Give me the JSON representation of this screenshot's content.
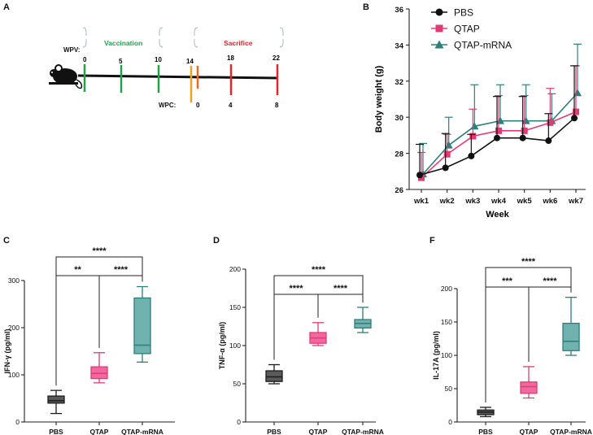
{
  "panels": {
    "A": "A",
    "B": "B",
    "C": "C",
    "D": "D",
    "F": "F"
  },
  "timeline": {
    "wpv_label": "WPV:",
    "wpc_label": "WPC:",
    "vaccination_label": "Vaccination",
    "sacrifice_label": "Sacrifice",
    "wpv_ticks": [
      "0",
      "5",
      "10",
      "14",
      "18",
      "22"
    ],
    "wpc_ticks": [
      "0",
      "4",
      "8"
    ],
    "colors": {
      "vaccination": "#23a04a",
      "sacrifice": "#e0262f",
      "wpc0": "#f0a020",
      "orange": "#ea6a1f",
      "bracket": "#aab9cc"
    }
  },
  "chart_data": [
    {
      "id": "B",
      "type": "line",
      "title": "",
      "xlabel": "Week",
      "ylabel": "Body weight (g)",
      "categories": [
        "wk1",
        "wk2",
        "wk3",
        "wk4",
        "wk5",
        "wk6",
        "wk7"
      ],
      "ylim": [
        26,
        36
      ],
      "yticks": [
        "26",
        "28",
        "30",
        "32",
        "34",
        "36"
      ],
      "legend_position": "top-left",
      "series": [
        {
          "name": "PBS",
          "marker": "circle",
          "color": "#111111",
          "values": [
            26.8,
            27.2,
            27.85,
            28.85,
            28.85,
            28.7,
            29.95
          ],
          "err": [
            1.7,
            1.9,
            1.2,
            2.3,
            2.3,
            1.5,
            2.9
          ]
        },
        {
          "name": "QTAP",
          "marker": "square",
          "color": "#e23a73",
          "values": [
            26.65,
            27.95,
            28.95,
            29.25,
            29.25,
            29.7,
            30.3
          ],
          "err": [
            1.4,
            1.1,
            1.5,
            1.95,
            1.95,
            1.9,
            2.55
          ]
        },
        {
          "name": "QTAP-mRNA",
          "marker": "triangle",
          "color": "#2b7f7c",
          "values": [
            26.85,
            28.45,
            29.5,
            29.8,
            29.8,
            29.8,
            31.35
          ],
          "err": [
            1.7,
            1.55,
            2.3,
            2.0,
            2.0,
            1.5,
            2.7
          ]
        }
      ]
    },
    {
      "id": "C",
      "type": "box",
      "ylabel": "IFN-γ (pg/ml)",
      "ylim": [
        0,
        300
      ],
      "yticks": [
        "0",
        "100",
        "200",
        "300"
      ],
      "categories": [
        "PBS",
        "QTAP",
        "QTAP-mRNA"
      ],
      "boxes": [
        {
          "min": 18,
          "q1": 40,
          "median": 45,
          "q3": 55,
          "max": 67
        },
        {
          "min": 83,
          "q1": 92,
          "median": 103,
          "q3": 117,
          "max": 147
        },
        {
          "min": 127,
          "q1": 145,
          "median": 163,
          "q3": 263,
          "max": 287
        }
      ],
      "significance": [
        {
          "from": 0,
          "to": 1,
          "label": "**"
        },
        {
          "from": 1,
          "to": 2,
          "label": "****"
        },
        {
          "from": 0,
          "to": 2,
          "label": "****"
        }
      ]
    },
    {
      "id": "D",
      "type": "box",
      "ylabel": "TNF-α (pg/ml)",
      "ylim": [
        0,
        200
      ],
      "yticks": [
        "0",
        "50",
        "100",
        "150",
        "200"
      ],
      "categories": [
        "PBS",
        "QTAP",
        "QTAP-mRNA"
      ],
      "boxes": [
        {
          "min": 50,
          "q1": 53,
          "median": 59,
          "q3": 67,
          "max": 75
        },
        {
          "min": 100,
          "q1": 103,
          "median": 110,
          "q3": 117,
          "max": 130
        },
        {
          "min": 117,
          "q1": 123,
          "median": 129,
          "q3": 134,
          "max": 150
        }
      ],
      "significance": [
        {
          "from": 0,
          "to": 1,
          "label": "****"
        },
        {
          "from": 1,
          "to": 2,
          "label": "****"
        },
        {
          "from": 0,
          "to": 2,
          "label": "****"
        }
      ]
    },
    {
      "id": "F",
      "type": "box",
      "ylabel": "IL-17A (pg/ml)",
      "ylim": [
        0,
        200
      ],
      "yticks": [
        "0",
        "50",
        "100",
        "150",
        "200"
      ],
      "categories": [
        "PBS",
        "QTAP",
        "QTAP-mRNA"
      ],
      "boxes": [
        {
          "min": 8,
          "q1": 11,
          "median": 15,
          "q3": 18,
          "max": 22
        },
        {
          "min": 36,
          "q1": 43,
          "median": 53,
          "q3": 60,
          "max": 83
        },
        {
          "min": 100,
          "q1": 107,
          "median": 121,
          "q3": 148,
          "max": 187
        }
      ],
      "significance": [
        {
          "from": 0,
          "to": 1,
          "label": "***"
        },
        {
          "from": 1,
          "to": 2,
          "label": "****"
        },
        {
          "from": 0,
          "to": 2,
          "label": "****"
        }
      ]
    }
  ],
  "box_colors": {
    "fills": [
      "#595959",
      "#f2679f",
      "#6fb2b0"
    ],
    "strokes": [
      "#1c1c1c",
      "#e23a73",
      "#2b7f7c"
    ]
  }
}
